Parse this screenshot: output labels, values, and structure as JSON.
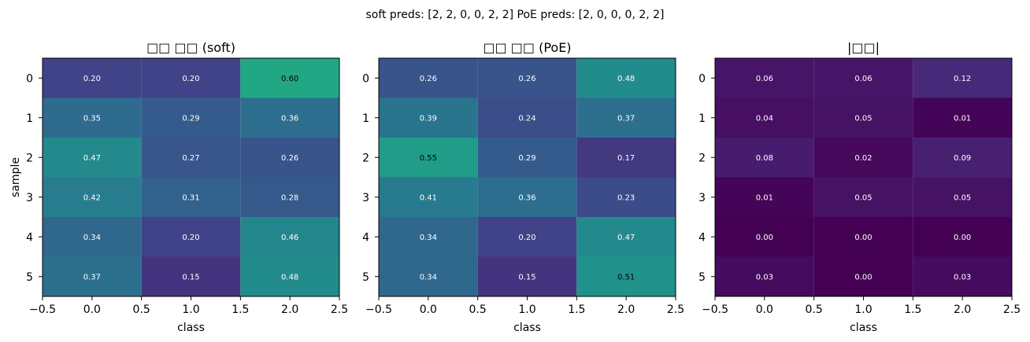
{
  "figure": {
    "suptitle": "soft preds: [2, 2, 0, 0, 2, 2]   PoE preds: [2, 0, 0, 0, 2, 2]"
  },
  "chart_data": [
    {
      "type": "heatmap",
      "title": "□□ □□ (soft)",
      "xlabel": "class",
      "ylabel": "sample",
      "xlim": [
        -0.5,
        2.5
      ],
      "ylim": [
        5.5,
        -0.5
      ],
      "xticks": [
        "−0.5",
        "0.0",
        "0.5",
        "1.0",
        "1.5",
        "2.0",
        "2.5"
      ],
      "yticks": [
        "0",
        "1",
        "2",
        "3",
        "4",
        "5"
      ],
      "colormap": "viridis",
      "value_range": [
        0,
        1
      ],
      "values": [
        [
          0.2,
          0.2,
          0.6
        ],
        [
          0.35,
          0.29,
          0.36
        ],
        [
          0.47,
          0.27,
          0.26
        ],
        [
          0.42,
          0.31,
          0.28
        ],
        [
          0.34,
          0.2,
          0.46
        ],
        [
          0.37,
          0.15,
          0.48
        ]
      ]
    },
    {
      "type": "heatmap",
      "title": "□□ □□ (PoE)",
      "xlabel": "class",
      "ylabel": "",
      "xlim": [
        -0.5,
        2.5
      ],
      "ylim": [
        5.5,
        -0.5
      ],
      "xticks": [
        "−0.5",
        "0.0",
        "0.5",
        "1.0",
        "1.5",
        "2.0",
        "2.5"
      ],
      "yticks": [
        "0",
        "1",
        "2",
        "3",
        "4",
        "5"
      ],
      "colormap": "viridis",
      "value_range": [
        0,
        1
      ],
      "values": [
        [
          0.26,
          0.26,
          0.48
        ],
        [
          0.39,
          0.24,
          0.37
        ],
        [
          0.55,
          0.29,
          0.17
        ],
        [
          0.41,
          0.36,
          0.23
        ],
        [
          0.34,
          0.2,
          0.47
        ],
        [
          0.34,
          0.15,
          0.51
        ]
      ]
    },
    {
      "type": "heatmap",
      "title": "|□□|",
      "xlabel": "class",
      "ylabel": "",
      "xlim": [
        -0.5,
        2.5
      ],
      "ylim": [
        5.5,
        -0.5
      ],
      "xticks": [
        "−0.5",
        "0.0",
        "0.5",
        "1.0",
        "1.5",
        "2.0",
        "2.5"
      ],
      "yticks": [
        "0",
        "1",
        "2",
        "3",
        "4",
        "5"
      ],
      "colormap": "viridis",
      "value_range": [
        0,
        1
      ],
      "values": [
        [
          0.06,
          0.06,
          0.12
        ],
        [
          0.04,
          0.05,
          0.01
        ],
        [
          0.08,
          0.02,
          0.09
        ],
        [
          0.01,
          0.05,
          0.05
        ],
        [
          0.0,
          0.0,
          0.0
        ],
        [
          0.03,
          0.0,
          0.03
        ]
      ]
    }
  ]
}
